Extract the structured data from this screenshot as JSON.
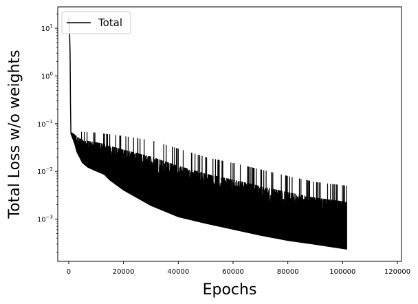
{
  "chart_data": {
    "type": "line",
    "xlabel": "Epochs",
    "ylabel": "Total Loss w/o weights",
    "xlim": [
      -4000,
      121500
    ],
    "ylim": [
      0.00013,
      28
    ],
    "yscale": "log",
    "grid": false,
    "legend_position": "top-left",
    "x_ticks": [
      {
        "value": 0,
        "label": "0"
      },
      {
        "value": 20000,
        "label": "20000"
      },
      {
        "value": 40000,
        "label": "40000"
      },
      {
        "value": 60000,
        "label": "60000"
      },
      {
        "value": 80000,
        "label": "80000"
      },
      {
        "value": 100000,
        "label": "100000"
      },
      {
        "value": 120000,
        "label": "120000"
      }
    ],
    "y_ticks": [
      {
        "value": 0.001,
        "base": "10",
        "exp": "−3"
      },
      {
        "value": 0.01,
        "base": "10",
        "exp": "−2"
      },
      {
        "value": 0.1,
        "base": "10",
        "exp": "−1"
      },
      {
        "value": 1,
        "base": "10",
        "exp": "0"
      },
      {
        "value": 10,
        "base": "10",
        "exp": "1"
      }
    ],
    "series": [
      {
        "name": "Total",
        "color": "#000000",
        "x_range": [
          0,
          101500
        ],
        "initial": [
          [
            0,
            17
          ],
          [
            300,
            9
          ],
          [
            500,
            3
          ],
          [
            650,
            0.25
          ],
          [
            800,
            0.065
          ]
        ],
        "lower_envelope": [
          [
            800,
            0.06
          ],
          [
            2000,
            0.04
          ],
          [
            3000,
            0.025
          ],
          [
            5000,
            0.015
          ],
          [
            7000,
            0.012
          ],
          [
            10000,
            0.01
          ],
          [
            13000,
            0.0085
          ],
          [
            15000,
            0.0065
          ],
          [
            20000,
            0.004
          ],
          [
            30000,
            0.0019
          ],
          [
            40000,
            0.0011
          ],
          [
            50000,
            0.0008
          ],
          [
            60000,
            0.0006
          ],
          [
            70000,
            0.00045
          ],
          [
            80000,
            0.00035
          ],
          [
            90000,
            0.00029
          ],
          [
            101500,
            0.00023
          ]
        ],
        "upper_envelope": [
          [
            800,
            0.07
          ],
          [
            10000,
            0.065
          ],
          [
            20000,
            0.055
          ],
          [
            30000,
            0.045
          ],
          [
            40000,
            0.03
          ],
          [
            50000,
            0.02
          ],
          [
            60000,
            0.015
          ],
          [
            70000,
            0.011
          ],
          [
            80000,
            0.008
          ],
          [
            90000,
            0.006
          ],
          [
            101500,
            0.005
          ]
        ]
      }
    ]
  }
}
